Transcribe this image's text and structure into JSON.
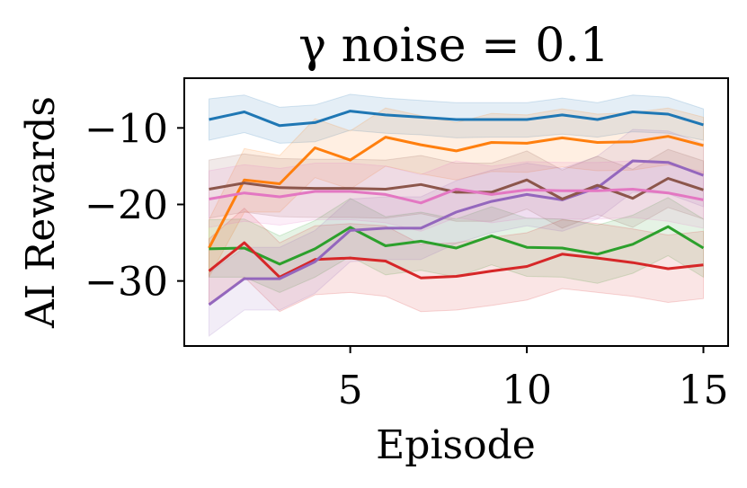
{
  "chart_data": {
    "type": "line",
    "title": "γ noise = 0.1",
    "xlabel": "Episode",
    "ylabel": "AI Rewards",
    "xlim": [
      0.3,
      15.7
    ],
    "ylim": [
      -38.5,
      -3.5
    ],
    "x_ticks": [
      5,
      10,
      15
    ],
    "x_tick_labels": [
      "5",
      "10",
      "15"
    ],
    "y_ticks": [
      -10,
      -20,
      -30
    ],
    "y_tick_labels": [
      "−10",
      "−20",
      "−30"
    ],
    "grid": false,
    "legend": "none",
    "x": [
      1,
      2,
      3,
      4,
      5,
      6,
      7,
      8,
      9,
      10,
      11,
      12,
      13,
      14,
      15
    ],
    "series": [
      {
        "name": "blue",
        "color": "#1f77b4",
        "values": [
          -8.9,
          -7.9,
          -9.7,
          -9.3,
          -7.8,
          -8.3,
          -8.6,
          -8.9,
          -8.9,
          -8.9,
          -8.3,
          -8.9,
          -7.9,
          -8.2,
          -9.6
        ],
        "lower": [
          -11.6,
          -10.6,
          -12.0,
          -11.8,
          -10.3,
          -10.7,
          -10.9,
          -11.3,
          -11.2,
          -11.2,
          -10.8,
          -11.2,
          -10.5,
          -10.7,
          -11.6
        ],
        "upper": [
          -6.2,
          -5.7,
          -7.3,
          -7.0,
          -5.6,
          -6.1,
          -6.4,
          -6.7,
          -6.7,
          -6.7,
          -6.1,
          -6.7,
          -5.7,
          -6.0,
          -7.5
        ]
      },
      {
        "name": "orange",
        "color": "#ff7f0e",
        "values": [
          -25.7,
          -16.8,
          -17.3,
          -12.6,
          -14.2,
          -11.2,
          -12.2,
          -13.0,
          -11.9,
          -12.0,
          -11.3,
          -11.9,
          -11.8,
          -11.1,
          -12.3
        ],
        "lower": [
          -29.5,
          -21.0,
          -21.0,
          -16.5,
          -18.0,
          -15.0,
          -16.0,
          -16.8,
          -15.7,
          -15.8,
          -15.1,
          -15.6,
          -15.5,
          -14.8,
          -16.0
        ],
        "upper": [
          -22.0,
          -12.7,
          -13.6,
          -8.8,
          -10.4,
          -7.4,
          -8.4,
          -9.3,
          -8.1,
          -8.3,
          -7.5,
          -8.2,
          -8.0,
          -7.4,
          -8.6
        ]
      },
      {
        "name": "green",
        "color": "#2ca02c",
        "values": [
          -25.8,
          -25.7,
          -27.8,
          -25.8,
          -23.0,
          -25.4,
          -24.8,
          -25.7,
          -24.1,
          -25.6,
          -25.7,
          -26.5,
          -25.2,
          -22.9,
          -25.7
        ],
        "lower": [
          -29.5,
          -29.5,
          -31.5,
          -29.5,
          -26.8,
          -29.2,
          -28.6,
          -29.5,
          -27.9,
          -29.4,
          -29.5,
          -30.3,
          -29.0,
          -26.7,
          -29.5
        ],
        "upper": [
          -22.0,
          -21.9,
          -24.1,
          -22.1,
          -19.2,
          -21.6,
          -21.0,
          -21.9,
          -20.3,
          -21.8,
          -21.9,
          -22.7,
          -21.4,
          -19.1,
          -21.9
        ]
      },
      {
        "name": "red",
        "color": "#d62728",
        "values": [
          -28.7,
          -25.0,
          -29.5,
          -27.2,
          -27.0,
          -27.4,
          -29.6,
          -29.4,
          -28.7,
          -28.1,
          -26.5,
          -27.0,
          -27.6,
          -28.4,
          -27.9
        ],
        "lower": [
          -33.0,
          -29.5,
          -34.0,
          -31.8,
          -31.5,
          -32.0,
          -34.0,
          -33.8,
          -33.2,
          -32.5,
          -31.0,
          -31.5,
          -32.0,
          -32.8,
          -32.3
        ],
        "upper": [
          -24.5,
          -20.5,
          -25.0,
          -22.8,
          -22.5,
          -22.8,
          -25.2,
          -25.0,
          -24.3,
          -23.7,
          -22.0,
          -22.5,
          -23.2,
          -24.0,
          -23.5
        ]
      },
      {
        "name": "purple",
        "color": "#9467bd",
        "values": [
          -33.1,
          -29.7,
          -29.7,
          -27.5,
          -23.4,
          -23.1,
          -23.1,
          -21.0,
          -19.6,
          -18.7,
          -19.4,
          -17.8,
          -14.3,
          -14.5,
          -16.2
        ],
        "lower": [
          -37.2,
          -33.8,
          -33.8,
          -31.6,
          -27.5,
          -27.2,
          -27.2,
          -25.1,
          -23.7,
          -22.8,
          -23.5,
          -21.9,
          -18.4,
          -18.6,
          -20.3
        ],
        "upper": [
          -29.0,
          -25.6,
          -25.6,
          -23.4,
          -19.3,
          -19.0,
          -19.0,
          -16.9,
          -15.5,
          -14.6,
          -15.3,
          -13.7,
          -10.2,
          -10.4,
          -12.1
        ]
      },
      {
        "name": "brown",
        "color": "#8c564b",
        "values": [
          -18.0,
          -17.2,
          -17.8,
          -17.9,
          -17.9,
          -18.0,
          -17.4,
          -18.4,
          -18.4,
          -16.8,
          -19.3,
          -17.5,
          -19.2,
          -16.6,
          -18.1
        ],
        "lower": [
          -21.8,
          -21.0,
          -21.6,
          -21.7,
          -21.7,
          -21.8,
          -21.2,
          -22.2,
          -22.2,
          -20.6,
          -23.1,
          -21.3,
          -23.0,
          -20.4,
          -21.9
        ],
        "upper": [
          -14.2,
          -13.4,
          -14.0,
          -14.1,
          -14.1,
          -14.2,
          -13.6,
          -14.6,
          -14.6,
          -13.0,
          -15.5,
          -13.7,
          -15.4,
          -12.8,
          -14.3
        ]
      },
      {
        "name": "pink",
        "color": "#e377c2",
        "values": [
          -19.3,
          -18.5,
          -19.0,
          -18.3,
          -18.3,
          -18.7,
          -19.8,
          -18.0,
          -18.7,
          -18.1,
          -18.2,
          -18.2,
          -18.0,
          -18.5,
          -19.4
        ],
        "lower": [
          -23.0,
          -22.2,
          -22.7,
          -22.0,
          -22.0,
          -22.4,
          -23.5,
          -21.7,
          -22.4,
          -21.8,
          -21.9,
          -21.9,
          -21.7,
          -22.2,
          -23.1
        ],
        "upper": [
          -15.6,
          -14.8,
          -15.3,
          -14.6,
          -14.6,
          -15.0,
          -16.1,
          -14.3,
          -15.0,
          -14.4,
          -14.5,
          -14.5,
          -14.3,
          -14.8,
          -15.7
        ]
      }
    ]
  }
}
